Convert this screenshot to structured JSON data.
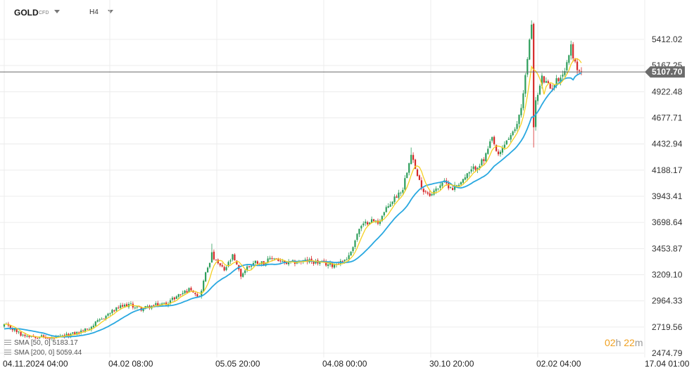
{
  "header": {
    "symbol": "GOLD",
    "symbol_type": "CFD",
    "timeframe": "H4"
  },
  "indicators": [
    {
      "label": "SMA [50, 0]",
      "value": "5183.17",
      "color": "#f5d020"
    },
    {
      "label": "SMA [200, 0]",
      "value": "5059.44",
      "color": "#29a8e0"
    }
  ],
  "timer": {
    "hours": "02",
    "h_unit": "h",
    "minutes": "22",
    "m_unit": "m"
  },
  "colors": {
    "bull": "#2e9e5b",
    "bear": "#d62a2a",
    "sma50": "#f5d020",
    "sma200": "#29a8e0",
    "price_line": "#6b6b6b",
    "grid": "#ececec"
  },
  "chart_data": {
    "type": "candlestick",
    "current_price": "5107.70",
    "ylim": [
      2474.79,
      5412.02
    ],
    "y_ticks": [
      "5412.02",
      "5167.25",
      "4922.48",
      "4677.71",
      "4432.94",
      "4188.17",
      "3943.41",
      "3698.64",
      "3453.87",
      "3209.10",
      "2964.33",
      "2719.56",
      "2474.79"
    ],
    "x_ticks": [
      "04.11.2024  04:00",
      "04.02  08:00",
      "05.05  20:00",
      "04.08  00:00",
      "30.10  20:00",
      "02.02  04:00",
      "17.04  01:00"
    ],
    "price_anchors": [
      [
        0,
        2740
      ],
      [
        5,
        2690
      ],
      [
        8,
        2650
      ],
      [
        12,
        2640
      ],
      [
        18,
        2630
      ],
      [
        22,
        2610
      ],
      [
        28,
        2630
      ],
      [
        34,
        2660
      ],
      [
        40,
        2700
      ],
      [
        46,
        2780
      ],
      [
        50,
        2840
      ],
      [
        55,
        2900
      ],
      [
        60,
        2930
      ],
      [
        66,
        2890
      ],
      [
        72,
        2920
      ],
      [
        78,
        2940
      ],
      [
        84,
        3020
      ],
      [
        90,
        3080
      ],
      [
        94,
        3000
      ],
      [
        97,
        3220
      ],
      [
        100,
        3400
      ],
      [
        102,
        3330
      ],
      [
        106,
        3250
      ],
      [
        110,
        3380
      ],
      [
        114,
        3200
      ],
      [
        117,
        3280
      ],
      [
        121,
        3330
      ],
      [
        125,
        3320
      ],
      [
        130,
        3370
      ],
      [
        135,
        3310
      ],
      [
        141,
        3330
      ],
      [
        147,
        3340
      ],
      [
        152,
        3320
      ],
      [
        158,
        3300
      ],
      [
        163,
        3340
      ],
      [
        166,
        3380
      ],
      [
        171,
        3640
      ],
      [
        176,
        3720
      ],
      [
        180,
        3700
      ],
      [
        186,
        3880
      ],
      [
        192,
        4020
      ],
      [
        196,
        4360
      ],
      [
        199,
        4120
      ],
      [
        202,
        4000
      ],
      [
        206,
        3960
      ],
      [
        211,
        4080
      ],
      [
        216,
        4020
      ],
      [
        221,
        4100
      ],
      [
        226,
        4200
      ],
      [
        231,
        4280
      ],
      [
        235,
        4480
      ],
      [
        238,
        4310
      ],
      [
        242,
        4470
      ],
      [
        246,
        4550
      ],
      [
        249,
        4780
      ],
      [
        252,
        5220
      ],
      [
        254,
        5560
      ],
      [
        255,
        4620
      ],
      [
        256,
        4820
      ],
      [
        259,
        5050
      ],
      [
        263,
        4950
      ],
      [
        267,
        5050
      ],
      [
        270,
        5120
      ],
      [
        273,
        5350
      ],
      [
        275,
        5180
      ],
      [
        277,
        5110
      ],
      [
        278,
        5107.7
      ]
    ],
    "series": [
      {
        "name": "SMA [50, 0]",
        "value": 5183.17
      },
      {
        "name": "SMA [200, 0]",
        "value": 5059.44
      }
    ],
    "grid": true
  }
}
